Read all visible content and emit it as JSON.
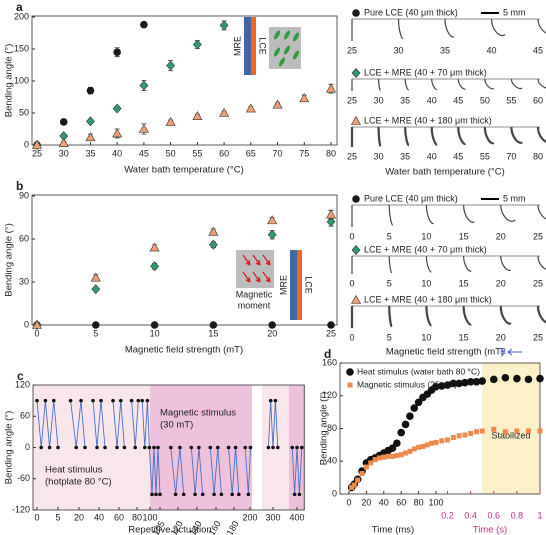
{
  "chart_data": [
    {
      "type": "scatter",
      "panel_label": "a",
      "xlabel": "Water bath temperature (°C)",
      "ylabel": "Bending angle (°)",
      "xlim": [
        25,
        80
      ],
      "xticks": [
        25,
        30,
        35,
        40,
        45,
        50,
        55,
        60,
        65,
        70,
        75,
        80
      ],
      "ylim": [
        0,
        200
      ],
      "yticks": [
        0,
        50,
        100,
        150,
        200
      ],
      "series": [
        {
          "name": "Pure LCE (40 μm thick)",
          "color": "#1a1a1a",
          "marker": "circle",
          "x": [
            25,
            30,
            35,
            40,
            45
          ],
          "values": [
            0,
            36,
            85,
            145,
            188
          ],
          "errors": [
            1,
            4,
            5,
            7,
            2
          ]
        },
        {
          "name": "LCE + MRE (40 + 70 μm thick)",
          "color": "#2e9c6b",
          "marker": "diamond",
          "x": [
            25,
            30,
            35,
            40,
            45,
            50,
            55,
            60
          ],
          "values": [
            0,
            14,
            37,
            57,
            93,
            124,
            157,
            187
          ],
          "errors": [
            0,
            3,
            3,
            3,
            8,
            8,
            6,
            7
          ]
        },
        {
          "name": "LCE + MRE (40 + 180 μm thick)",
          "color": "#f0a070",
          "marker": "triangle",
          "x": [
            25,
            30,
            35,
            40,
            45,
            50,
            55,
            60,
            65,
            70,
            75,
            80
          ],
          "values": [
            0,
            3,
            12,
            18,
            25,
            36,
            45,
            50,
            57,
            63,
            73,
            88
          ],
          "errors": [
            0,
            3,
            5,
            7,
            8,
            3,
            3,
            3,
            3,
            3,
            5,
            7
          ]
        }
      ],
      "inset_labels": [
        "MRE",
        "LCE"
      ],
      "illustration": {
        "scale_bar": "5 mm",
        "rows": [
          {
            "ticks": [
              25,
              30,
              35,
              40,
              45
            ]
          },
          {
            "ticks": [
              25,
              30,
              35,
              40,
              45,
              50,
              55,
              60
            ]
          },
          {
            "ticks": [
              25,
              30,
              35,
              40,
              45,
              55,
              70,
              80
            ]
          }
        ],
        "xlabel": "Water bath temperature (°C)"
      }
    },
    {
      "type": "scatter",
      "panel_label": "b",
      "xlabel": "Magnetic field strength (mT)",
      "ylabel": "Bending angle (°)",
      "xlim": [
        0,
        25
      ],
      "xticks": [
        0,
        5,
        10,
        15,
        20,
        25
      ],
      "ylim": [
        0,
        90
      ],
      "yticks": [
        0,
        30,
        60,
        90
      ],
      "series": [
        {
          "name": "Pure LCE (40 μm thick)",
          "color": "#1a1a1a",
          "marker": "circle",
          "x": [
            0,
            5,
            10,
            15,
            20,
            25
          ],
          "values": [
            0,
            0,
            0,
            0,
            0,
            0
          ],
          "errors": [
            0,
            0,
            0,
            0,
            0,
            0
          ]
        },
        {
          "name": "LCE + MRE (40 + 70 μm thick)",
          "color": "#2e9c6b",
          "marker": "diamond",
          "x": [
            0,
            5,
            10,
            15,
            20,
            25
          ],
          "values": [
            0,
            25,
            41,
            56,
            63,
            72
          ],
          "errors": [
            0,
            1,
            2,
            2,
            3,
            3
          ]
        },
        {
          "name": "LCE + MRE (40 + 180 μm thick)",
          "color": "#f0a070",
          "marker": "triangle",
          "x": [
            0,
            5,
            10,
            15,
            20,
            25
          ],
          "values": [
            0,
            33,
            54,
            65,
            73,
            77
          ],
          "errors": [
            0,
            2,
            2,
            2,
            2,
            3
          ]
        }
      ],
      "inset_labels": [
        "MRE",
        "LCE"
      ],
      "inset_caption": [
        "Magnetic",
        "moment"
      ],
      "illustration": {
        "scale_bar": "5 mm",
        "rows": [
          {
            "ticks": [
              0,
              5,
              10,
              15,
              20,
              25
            ]
          },
          {
            "ticks": [
              0,
              5,
              10,
              15,
              20,
              25
            ]
          },
          {
            "ticks": [
              0,
              5,
              10,
              15,
              20,
              25
            ]
          }
        ],
        "xlabel": "Magnetic field strength (mT)",
        "field_label": "B"
      }
    },
    {
      "type": "line",
      "panel_label": "c",
      "xlabel": "Repetitive actuation",
      "ylabel": "Bending angle (°)",
      "xlim": [
        0,
        430
      ],
      "xticks": [
        0,
        5,
        20,
        40,
        60,
        80,
        100,
        105,
        120,
        140,
        160,
        180,
        200,
        300,
        400
      ],
      "ylim": [
        -120,
        120
      ],
      "yticks": [
        -120,
        -60,
        0,
        60,
        120
      ],
      "annotations": [
        [
          "Magnetic stimulus",
          "(30 mT)"
        ],
        [
          "Heat stimulus",
          "(hotplate 80 °C)"
        ]
      ],
      "series": [
        {
          "color": "#4a6fc4",
          "x": [
            0,
            1,
            2,
            3,
            4,
            5,
            10,
            14,
            18,
            22,
            26,
            30,
            34,
            38,
            42,
            46,
            50,
            54,
            58,
            62,
            66,
            70,
            74,
            78,
            82,
            85,
            88,
            92,
            96,
            99,
            101,
            102,
            103,
            104,
            105,
            110,
            114,
            118,
            122,
            126,
            130,
            134,
            138,
            142,
            146,
            150,
            154,
            158,
            162,
            166,
            170,
            174,
            178,
            182,
            186,
            190,
            194,
            198,
            202,
            250,
            280,
            290,
            300,
            310,
            320,
            350,
            380,
            390,
            400,
            410,
            420
          ],
          "values": [
            90,
            0,
            90,
            0,
            90,
            0,
            null,
            90,
            0,
            90,
            0,
            null,
            90,
            0,
            90,
            0,
            null,
            90,
            0,
            90,
            0,
            null,
            90,
            0,
            90,
            null,
            90,
            0,
            90,
            0,
            -90,
            0,
            -90,
            0,
            -90,
            null,
            0,
            -90,
            0,
            -90,
            null,
            0,
            -90,
            0,
            -90,
            null,
            0,
            -90,
            0,
            -90,
            null,
            0,
            -90,
            0,
            -90,
            null,
            0,
            -90,
            0,
            null,
            0,
            90,
            0,
            90,
            0,
            null,
            0,
            -90,
            0,
            -90,
            0
          ]
        }
      ]
    },
    {
      "type": "scatter",
      "panel_label": "d",
      "xlabel": "Time (ms)",
      "x2label": "Time (s)",
      "ylabel": "Bending angle (°)",
      "xlim": [
        0,
        100
      ],
      "xticks": [
        0,
        20,
        40,
        60,
        80,
        100
      ],
      "x2lim": [
        0.1,
        1
      ],
      "x2ticks": [
        0.2,
        0.4,
        0.6,
        0.8,
        1
      ],
      "ylim": [
        0,
        160
      ],
      "yticks": [
        0,
        40,
        80,
        120,
        160
      ],
      "annotation": "Stabilized",
      "series": [
        {
          "name": "Heat stimulus (water bath 80 °C)",
          "color": "#111111",
          "marker": "circle",
          "x": [
            3,
            6,
            10,
            15,
            20,
            25,
            30,
            35,
            40,
            45,
            50,
            55,
            60,
            65,
            70,
            75,
            80,
            85,
            90,
            95,
            100
          ],
          "values": [
            8,
            12,
            18,
            28,
            38,
            42,
            44,
            47,
            50,
            53,
            56,
            62,
            75,
            85,
            95,
            105,
            112,
            118,
            122,
            127,
            131
          ],
          "x2": [
            0.15,
            0.2,
            0.25,
            0.3,
            0.35,
            0.4,
            0.45,
            0.5,
            0.6,
            0.7,
            0.8,
            0.9,
            1
          ],
          "values2": [
            132,
            133,
            135,
            135,
            136,
            137,
            137,
            138,
            140,
            142,
            141,
            140,
            141
          ]
        },
        {
          "name": "Magnetic stimulus (25 mT)",
          "color": "#ef8a4a",
          "marker": "square",
          "x": [
            3,
            6,
            10,
            15,
            20,
            25,
            30,
            35,
            40,
            45,
            50,
            55,
            60,
            65,
            70,
            75,
            80,
            85,
            90,
            95,
            100
          ],
          "values": [
            8,
            11,
            17,
            25,
            33,
            38,
            42,
            44,
            45,
            46,
            46,
            47,
            48,
            50,
            52,
            55,
            57,
            58,
            60,
            62,
            63
          ],
          "x2": [
            0.15,
            0.2,
            0.25,
            0.3,
            0.35,
            0.4,
            0.45,
            0.5,
            0.6,
            0.7,
            0.8,
            0.9,
            1
          ],
          "values2": [
            65,
            66,
            69,
            71,
            72,
            74,
            76,
            77,
            79,
            76,
            77,
            77,
            77
          ]
        }
      ]
    }
  ]
}
